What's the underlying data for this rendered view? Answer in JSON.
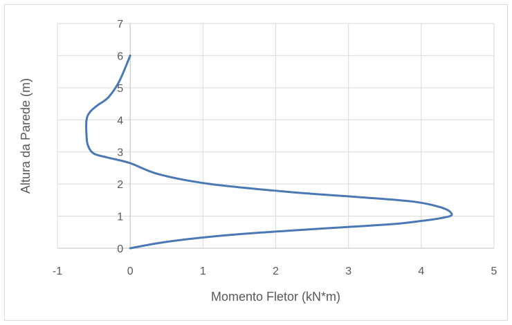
{
  "chart_data": {
    "type": "line",
    "title": "",
    "xlabel": "Momento Fletor (kN*m)",
    "ylabel": "Altura da Parede (m)",
    "xlim": [
      -1,
      5
    ],
    "ylim": [
      0,
      7
    ],
    "xticks": [
      -1,
      0,
      1,
      2,
      3,
      4,
      5
    ],
    "yticks": [
      0,
      1,
      2,
      3,
      4,
      5,
      6,
      7
    ],
    "xtick_labels": [
      "-1",
      "0",
      "1",
      "2",
      "3",
      "4",
      "5"
    ],
    "ytick_labels": [
      "0",
      "1",
      "2",
      "3",
      "4",
      "5",
      "6",
      "7"
    ],
    "grid": true,
    "legend": "none",
    "series": [
      {
        "color": "#4a78b5",
        "x": [
          0,
          0.5,
          1.3,
          2.2,
          2.9,
          3.6,
          4.0,
          4.3,
          4.42,
          4.3,
          3.9,
          3.1,
          2.2,
          1.1,
          0.4,
          0.0,
          -0.3,
          -0.5,
          -0.58,
          -0.6,
          -0.6,
          -0.55,
          -0.45,
          -0.3,
          -0.15,
          0.0
        ],
        "y": [
          0,
          0.2,
          0.4,
          0.55,
          0.65,
          0.75,
          0.85,
          0.95,
          1.05,
          1.25,
          1.45,
          1.6,
          1.75,
          2.0,
          2.3,
          2.65,
          2.82,
          2.95,
          3.2,
          3.5,
          4.0,
          4.25,
          4.45,
          4.7,
          5.2,
          6.0
        ]
      }
    ]
  }
}
